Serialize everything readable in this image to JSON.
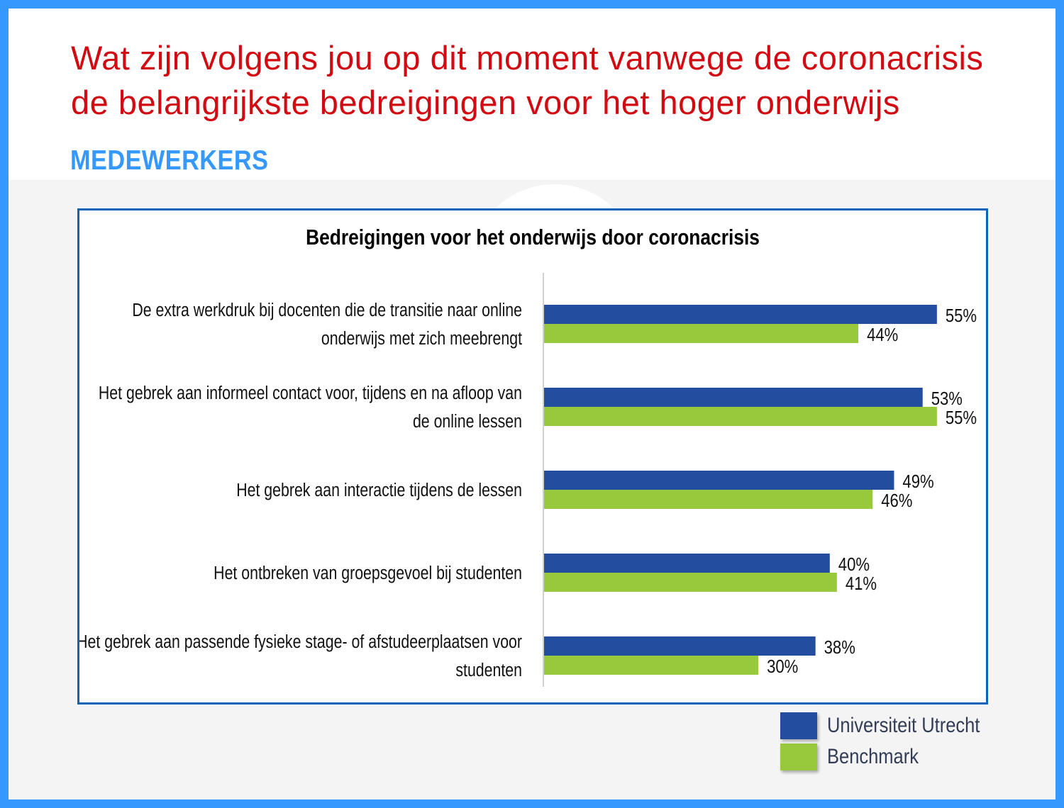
{
  "header": {
    "title_line1": "Wat zijn volgens jou op dit moment vanwege de coronacrisis",
    "title_line2": "de belangrijkste bedreigingen voor het hoger onderwijs",
    "subtitle": "MEDEWERKERS"
  },
  "chart_data": {
    "type": "bar",
    "orientation": "horizontal",
    "title": "Bedreigingen voor het onderwijs door coronacrisis",
    "categories": [
      [
        "De extra werkdruk bij docenten die de transitie naar online",
        "onderwijs met zich meebrengt"
      ],
      [
        "Het gebrek aan informeel contact voor, tijdens en na afloop van",
        "de online lessen"
      ],
      [
        "Het gebrek aan interactie tijdens de lessen"
      ],
      [
        "Het ontbreken van groepsgevoel bij studenten"
      ],
      [
        "Het gebrek aan passende fysieke stage- of afstudeerplaatsen voor",
        "studenten"
      ]
    ],
    "series": [
      {
        "name": "Universiteit Utrecht",
        "color": "#234d9f",
        "values": [
          55,
          53,
          49,
          40,
          38
        ]
      },
      {
        "name": "Benchmark",
        "color": "#98c93c",
        "values": [
          44,
          55,
          46,
          41,
          30
        ]
      }
    ],
    "value_suffix": "%",
    "xlim": [
      0,
      60
    ],
    "legend_position": "bottom-right",
    "grid": false
  }
}
